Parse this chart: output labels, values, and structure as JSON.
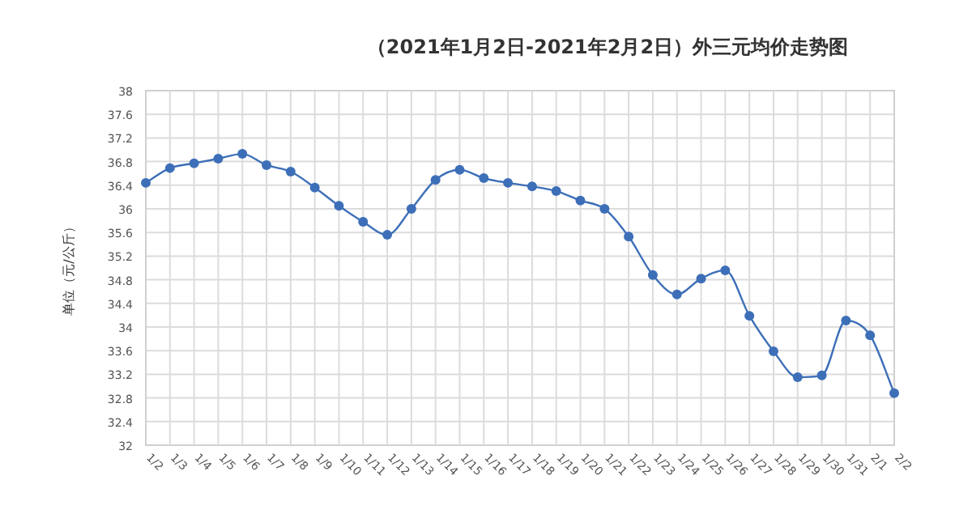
{
  "chart_data": {
    "type": "line",
    "title": "（2021年1月2日-2021年2月2日）外三元均价走势图",
    "ylabel": "单位（元/公斤）",
    "categories": [
      "1/2",
      "1/3",
      "1/4",
      "1/5",
      "1/6",
      "1/7",
      "1/8",
      "1/9",
      "1/10",
      "1/11",
      "1/12",
      "1/13",
      "1/14",
      "1/15",
      "1/16",
      "1/17",
      "1/18",
      "1/19",
      "1/20",
      "1/21",
      "1/22",
      "1/23",
      "1/24",
      "1/25",
      "1/26",
      "1/27",
      "1/28",
      "1/29",
      "1/30",
      "1/31",
      "2/1",
      "2/2"
    ],
    "series": [
      {
        "color": "#3d6fb8",
        "values": [
          36.44,
          36.69,
          36.77,
          36.85,
          36.93,
          36.74,
          36.63,
          36.36,
          36.05,
          35.78,
          35.56,
          36.0,
          36.49,
          36.66,
          36.52,
          36.44,
          36.38,
          36.3,
          36.14,
          36.0,
          35.53,
          34.88,
          34.55,
          34.82,
          34.96,
          34.19,
          33.59,
          33.15,
          33.18,
          34.11,
          33.86,
          32.88
        ]
      }
    ],
    "ylim": [
      32,
      38
    ],
    "yticks": [
      32,
      32.4,
      32.8,
      33.2,
      33.6,
      34,
      34.4,
      34.8,
      35.2,
      35.6,
      36,
      36.4,
      36.8,
      37.2,
      37.6,
      38
    ],
    "grid": true,
    "marker": "circle",
    "line_style": "solid"
  }
}
